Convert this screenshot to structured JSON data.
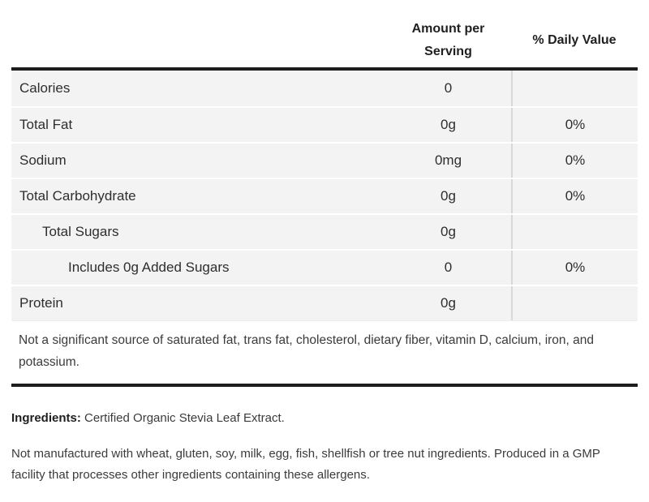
{
  "table": {
    "header": {
      "amount_per_serving": "Amount per Serving",
      "daily_value": "% Daily Value"
    },
    "rows": [
      {
        "label": "Calories",
        "amount": "0",
        "daily": "",
        "indent": 0
      },
      {
        "label": "Total Fat",
        "amount": "0g",
        "daily": "0%",
        "indent": 0
      },
      {
        "label": "Sodium",
        "amount": "0mg",
        "daily": "0%",
        "indent": 0
      },
      {
        "label": "Total Carbohydrate",
        "amount": "0g",
        "daily": "0%",
        "indent": 0
      },
      {
        "label": "Total Sugars",
        "amount": "0g",
        "daily": "",
        "indent": 1
      },
      {
        "label": "Includes 0g Added Sugars",
        "amount": "0",
        "daily": "0%",
        "indent": 2
      },
      {
        "label": "Protein",
        "amount": "0g",
        "daily": "",
        "indent": 0
      }
    ],
    "footnote": "Not a significant source of saturated fat, trans fat, cholesterol, dietary fiber, vitamin D, calcium, iron, and potassium."
  },
  "ingredients": {
    "label": "Ingredients:",
    "text": " Certified Organic Stevia Leaf Extract."
  },
  "allergen_note": "Not manufactured with wheat, gluten, soy, milk, egg, fish, shellfish or tree nut ingredients. Produced in a GMP facility that processes other ingredients containing these allergens.",
  "colors": {
    "thick_border": "#1d1d1d",
    "row_background": "#f3f3f4",
    "row_separator": "#ffffff",
    "column_divider": "#d8d8d8",
    "text_primary": "#2e2e2e",
    "text_secondary": "#3b3b3b"
  }
}
